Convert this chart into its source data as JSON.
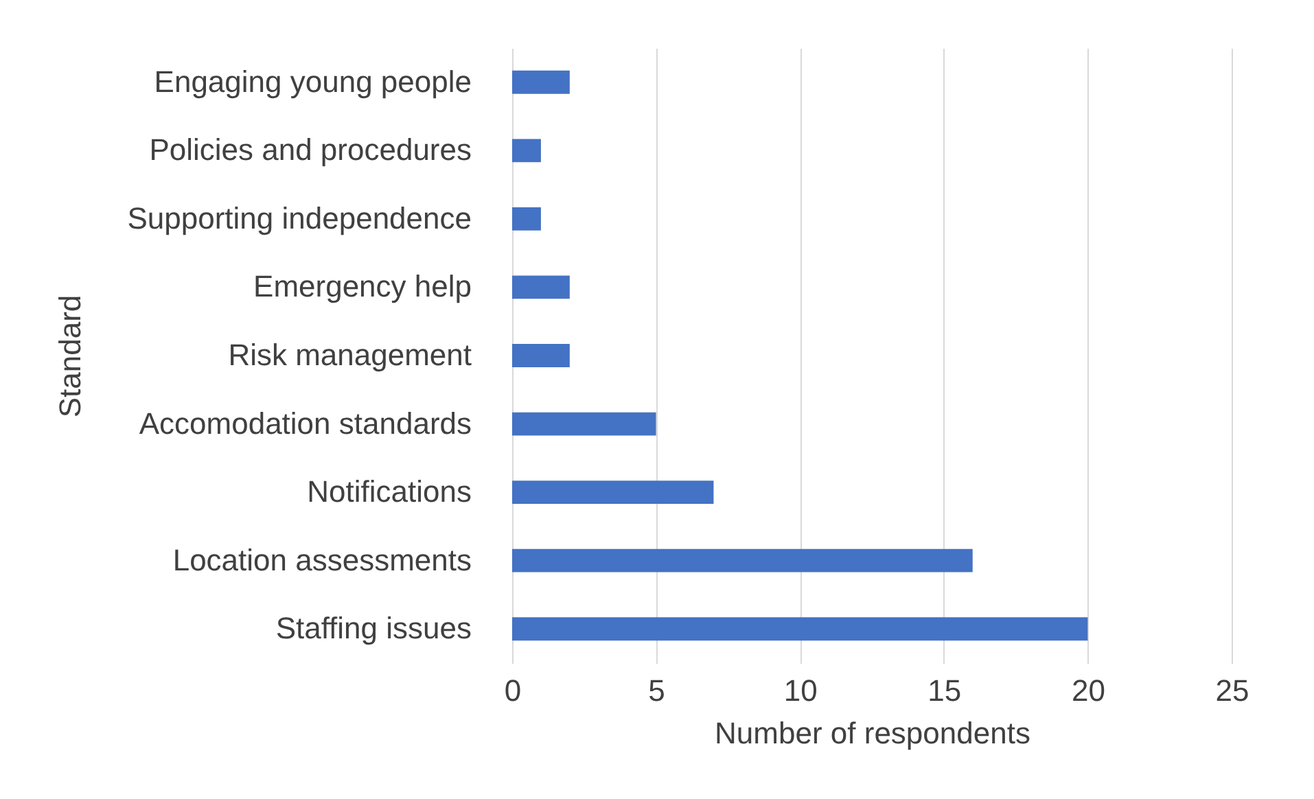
{
  "chart_data": {
    "type": "bar",
    "orientation": "horizontal",
    "xlabel": "Number of respondents",
    "ylabel": "Standard",
    "categories": [
      "Engaging young people",
      "Policies and procedures",
      "Supporting independence",
      "Emergency help",
      "Risk management",
      "Accomodation standards",
      "Notifications",
      "Location assessments",
      "Staffing issues"
    ],
    "values": [
      2,
      1,
      1,
      2,
      2,
      5,
      7,
      16,
      20
    ],
    "color": "#4472c4",
    "xlim": [
      0,
      25
    ],
    "xticks": [
      0,
      5,
      10,
      15,
      20,
      25
    ],
    "grid": "x"
  }
}
